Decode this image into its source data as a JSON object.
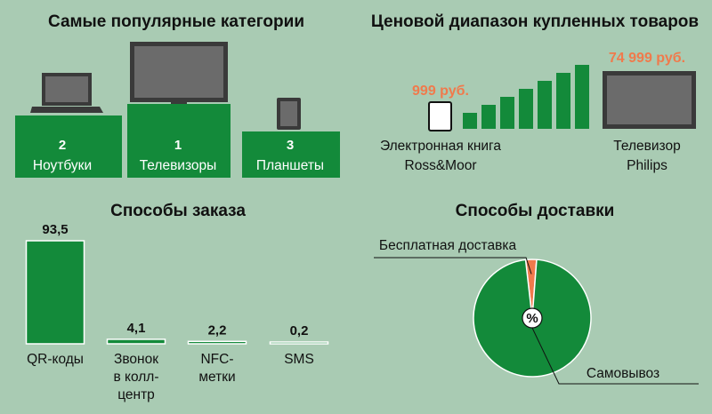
{
  "colors": {
    "background": "#a9cbb3",
    "green": "#138a3a",
    "orange": "#f07a4c",
    "device_dark": "#3a3a3a",
    "device_screen": "#6b6b6b"
  },
  "categories": {
    "title": "Самые популярные категории",
    "items": [
      {
        "rank": "2",
        "label": "Ноутбуки",
        "icon": "laptop-icon"
      },
      {
        "rank": "1",
        "label": "Телевизоры",
        "icon": "tv-icon"
      },
      {
        "rank": "3",
        "label": "Планшеты",
        "icon": "tablet-icon"
      }
    ]
  },
  "price_range": {
    "title": "Ценовой диапазон купленных товаров",
    "min_price": "999 руб.",
    "max_price": "74 999 руб.",
    "min_label_line1": "Электронная книга",
    "min_label_line2": "Ross&Moor",
    "max_label_line1": "Телевизор",
    "max_label_line2": "Philips",
    "min_icon": "ebook-icon",
    "max_icon": "tv-icon"
  },
  "chart_data": [
    {
      "type": "bar",
      "title": "Способы заказа",
      "categories": [
        "QR-коды",
        "Звонок в колл-центр",
        "NFC-метки",
        "SMS"
      ],
      "category_lines": [
        [
          "QR-коды"
        ],
        [
          "Звонок",
          "в колл-",
          "центр"
        ],
        [
          "NFC-",
          "метки"
        ],
        [
          "SMS"
        ]
      ],
      "values": [
        93.5,
        4.1,
        2.2,
        0.2
      ],
      "value_labels": [
        "93,5",
        "4,1",
        "2,2",
        "0,2"
      ],
      "ylim": [
        0,
        93.5
      ]
    },
    {
      "type": "pie",
      "title": "Способы доставки",
      "center_label": "%",
      "slices": [
        {
          "label": "Бесплатная доставка",
          "value": 3,
          "color": "#f07a4c"
        },
        {
          "label": "Самовывоз",
          "value": 97,
          "color": "#138a3a"
        }
      ]
    }
  ]
}
